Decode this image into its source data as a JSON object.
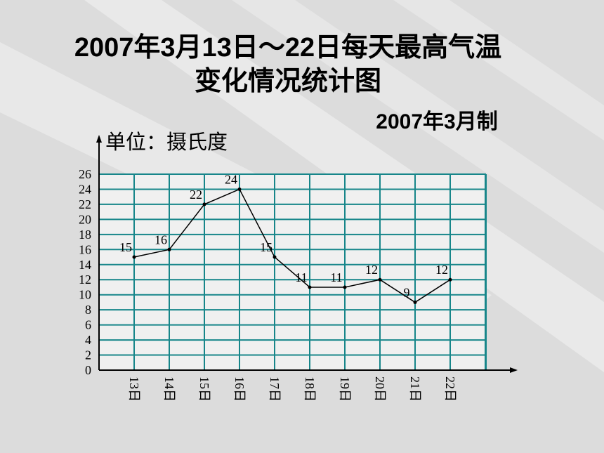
{
  "chart_data": {
    "type": "line",
    "title": "2007年3月13日～22日每天最高气温",
    "title_line2": "变化情况统计图",
    "subtitle": "2007年3月制",
    "y_label": "单位：摄氏度",
    "categories": [
      "13日",
      "14日",
      "15日",
      "16日",
      "17日",
      "18日",
      "19日",
      "20日",
      "21日",
      "22日"
    ],
    "values": [
      15,
      16,
      22,
      24,
      15,
      11,
      11,
      12,
      9,
      12
    ],
    "color": "#000000",
    "grid_color": "#17868a",
    "ylim": [
      0,
      26
    ],
    "yticks": [
      0,
      2,
      4,
      6,
      8,
      10,
      12,
      14,
      16,
      18,
      20,
      22,
      24,
      26
    ],
    "grid": true
  }
}
